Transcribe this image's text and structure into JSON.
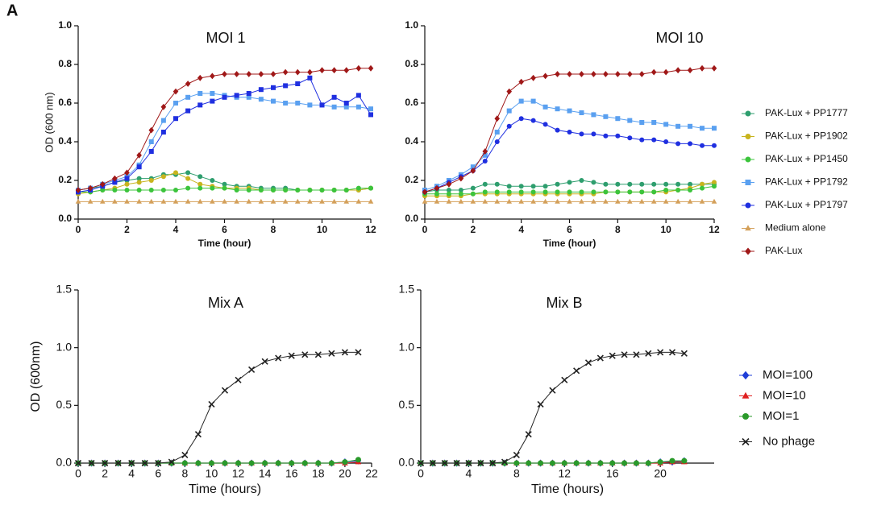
{
  "panel_label": "A",
  "chart_data": [
    {
      "type": "line",
      "title": "MOI 1",
      "xlabel": "Time (hour)",
      "ylabel": "OD (600 nm)",
      "x": [
        0,
        0.5,
        1,
        1.5,
        2,
        2.5,
        3,
        3.5,
        4,
        4.5,
        5,
        5.5,
        6,
        6.5,
        7,
        7.5,
        8,
        8.5,
        9,
        9.5,
        10,
        10.5,
        11,
        11.5,
        12
      ],
      "xlim": [
        0,
        12
      ],
      "xticks": [
        0,
        2,
        4,
        6,
        8,
        10,
        12
      ],
      "ylim": [
        0,
        1
      ],
      "yticks": [
        {
          "value": 0,
          "label": "0.0"
        },
        {
          "value": 0.2,
          "label": "0.2"
        },
        {
          "value": 0.4,
          "label": "0.4"
        },
        {
          "value": 0.6,
          "label": "0.6"
        },
        {
          "value": 0.8,
          "label": "0.8"
        },
        {
          "value": 1,
          "label": "1.0"
        }
      ],
      "series": [
        {
          "name": "PAK-Lux + PP1777",
          "color": "#2e9e6e",
          "marker": "circle",
          "values": [
            0.15,
            0.16,
            0.17,
            0.19,
            0.2,
            0.21,
            0.21,
            0.23,
            0.23,
            0.24,
            0.22,
            0.2,
            0.18,
            0.17,
            0.17,
            0.16,
            0.16,
            0.16,
            0.15,
            0.15,
            0.15,
            0.15,
            0.15,
            0.15,
            0.16
          ]
        },
        {
          "name": "PAK-Lux + PP1902",
          "color": "#c8b41e",
          "marker": "circle",
          "values": [
            0.13,
            0.14,
            0.15,
            0.16,
            0.18,
            0.19,
            0.2,
            0.22,
            0.24,
            0.21,
            0.18,
            0.17,
            0.16,
            0.16,
            0.16,
            0.15,
            0.15,
            0.15,
            0.15,
            0.15,
            0.15,
            0.15,
            0.15,
            0.15,
            0.16
          ]
        },
        {
          "name": "PAK-Lux + PP1450",
          "color": "#3cc43c",
          "marker": "circle",
          "values": [
            0.14,
            0.14,
            0.15,
            0.15,
            0.15,
            0.15,
            0.15,
            0.15,
            0.15,
            0.16,
            0.16,
            0.16,
            0.16,
            0.15,
            0.15,
            0.15,
            0.15,
            0.15,
            0.15,
            0.15,
            0.15,
            0.15,
            0.15,
            0.16,
            0.16
          ]
        },
        {
          "name": "PAK-Lux + PP1792",
          "color": "#5aa0f0",
          "marker": "square",
          "values": [
            0.15,
            0.16,
            0.18,
            0.2,
            0.22,
            0.28,
            0.4,
            0.51,
            0.6,
            0.63,
            0.65,
            0.65,
            0.64,
            0.63,
            0.63,
            0.62,
            0.61,
            0.6,
            0.6,
            0.59,
            0.59,
            0.58,
            0.58,
            0.58,
            0.57
          ]
        },
        {
          "name": "PAK-Lux + PP1797",
          "color": "#1f2fe0",
          "marker": "square",
          "values": [
            0.14,
            0.15,
            0.17,
            0.19,
            0.21,
            0.27,
            0.35,
            0.45,
            0.52,
            0.56,
            0.59,
            0.61,
            0.63,
            0.64,
            0.65,
            0.67,
            0.68,
            0.69,
            0.7,
            0.73,
            0.59,
            0.63,
            0.6,
            0.64,
            0.54
          ]
        },
        {
          "name": "Medium alone",
          "color": "#d4a05a",
          "marker": "triangle",
          "values": [
            0.09,
            0.09,
            0.09,
            0.09,
            0.09,
            0.09,
            0.09,
            0.09,
            0.09,
            0.09,
            0.09,
            0.09,
            0.09,
            0.09,
            0.09,
            0.09,
            0.09,
            0.09,
            0.09,
            0.09,
            0.09,
            0.09,
            0.09,
            0.09,
            0.09
          ]
        },
        {
          "name": "PAK-Lux",
          "color": "#a01818",
          "marker": "diamond",
          "values": [
            0.15,
            0.16,
            0.18,
            0.21,
            0.24,
            0.33,
            0.46,
            0.58,
            0.66,
            0.7,
            0.73,
            0.74,
            0.75,
            0.75,
            0.75,
            0.75,
            0.75,
            0.76,
            0.76,
            0.76,
            0.77,
            0.77,
            0.77,
            0.78,
            0.78
          ]
        }
      ]
    },
    {
      "type": "line",
      "title": "MOI 10",
      "xlabel": "Time (hour)",
      "legend": "right",
      "x": [
        0,
        0.5,
        1,
        1.5,
        2,
        2.5,
        3,
        3.5,
        4,
        4.5,
        5,
        5.5,
        6,
        6.5,
        7,
        7.5,
        8,
        8.5,
        9,
        9.5,
        10,
        10.5,
        11,
        11.5,
        12
      ],
      "xlim": [
        0,
        12
      ],
      "xticks": [
        0,
        2,
        4,
        6,
        8,
        10,
        12
      ],
      "ylim": [
        0,
        1
      ],
      "yticks": [
        {
          "value": 0,
          "label": "0.0"
        },
        {
          "value": 0.2,
          "label": "0.2"
        },
        {
          "value": 0.4,
          "label": "0.4"
        },
        {
          "value": 0.6,
          "label": "0.6"
        },
        {
          "value": 0.8,
          "label": "0.8"
        },
        {
          "value": 1,
          "label": "1.0"
        }
      ],
      "series": [
        {
          "name": "PAK-Lux + PP1777",
          "color": "#2e9e6e",
          "marker": "circle",
          "values": [
            0.14,
            0.15,
            0.15,
            0.15,
            0.16,
            0.18,
            0.18,
            0.17,
            0.17,
            0.17,
            0.17,
            0.18,
            0.19,
            0.2,
            0.19,
            0.18,
            0.18,
            0.18,
            0.18,
            0.18,
            0.18,
            0.18,
            0.18,
            0.18,
            0.18
          ]
        },
        {
          "name": "PAK-Lux + PP1902",
          "color": "#c8b41e",
          "marker": "circle",
          "values": [
            0.12,
            0.12,
            0.12,
            0.12,
            0.13,
            0.13,
            0.13,
            0.13,
            0.13,
            0.13,
            0.13,
            0.13,
            0.13,
            0.13,
            0.13,
            0.14,
            0.14,
            0.14,
            0.14,
            0.14,
            0.14,
            0.15,
            0.16,
            0.18,
            0.19
          ]
        },
        {
          "name": "PAK-Lux + PP1450",
          "color": "#3cc43c",
          "marker": "circle",
          "values": [
            0.13,
            0.13,
            0.13,
            0.13,
            0.13,
            0.14,
            0.14,
            0.14,
            0.14,
            0.14,
            0.14,
            0.14,
            0.14,
            0.14,
            0.14,
            0.14,
            0.14,
            0.14,
            0.14,
            0.14,
            0.15,
            0.15,
            0.15,
            0.16,
            0.17
          ]
        },
        {
          "name": "PAK-Lux + PP1792",
          "color": "#5aa0f0",
          "marker": "square",
          "values": [
            0.15,
            0.17,
            0.2,
            0.23,
            0.27,
            0.33,
            0.45,
            0.56,
            0.61,
            0.61,
            0.58,
            0.57,
            0.56,
            0.55,
            0.54,
            0.53,
            0.52,
            0.51,
            0.5,
            0.5,
            0.49,
            0.48,
            0.48,
            0.47,
            0.47
          ]
        },
        {
          "name": "PAK-Lux + PP1797",
          "color": "#1f2fe0",
          "marker": "circle",
          "values": [
            0.14,
            0.16,
            0.19,
            0.22,
            0.25,
            0.3,
            0.4,
            0.48,
            0.52,
            0.51,
            0.49,
            0.46,
            0.45,
            0.44,
            0.44,
            0.43,
            0.43,
            0.42,
            0.41,
            0.41,
            0.4,
            0.39,
            0.39,
            0.38,
            0.38
          ]
        },
        {
          "name": "Medium alone",
          "color": "#d4a05a",
          "marker": "triangle",
          "values": [
            0.09,
            0.09,
            0.09,
            0.09,
            0.09,
            0.09,
            0.09,
            0.09,
            0.09,
            0.09,
            0.09,
            0.09,
            0.09,
            0.09,
            0.09,
            0.09,
            0.09,
            0.09,
            0.09,
            0.09,
            0.09,
            0.09,
            0.09,
            0.09,
            0.09
          ]
        },
        {
          "name": "PAK-Lux",
          "color": "#a01818",
          "marker": "diamond",
          "values": [
            0.14,
            0.16,
            0.18,
            0.21,
            0.25,
            0.35,
            0.52,
            0.66,
            0.71,
            0.73,
            0.74,
            0.75,
            0.75,
            0.75,
            0.75,
            0.75,
            0.75,
            0.75,
            0.75,
            0.76,
            0.76,
            0.77,
            0.77,
            0.78,
            0.78
          ]
        }
      ]
    },
    {
      "type": "line",
      "title": "Mix A",
      "xlabel": "Time (hours)",
      "ylabel": "OD (600nm)",
      "x": [
        0,
        1,
        2,
        3,
        4,
        5,
        6,
        7,
        8,
        9,
        10,
        11,
        12,
        13,
        14,
        15,
        16,
        17,
        18,
        19,
        20,
        21
      ],
      "xlim": [
        0,
        22
      ],
      "xticks": [
        0,
        2,
        4,
        6,
        8,
        10,
        12,
        14,
        16,
        18,
        20,
        22
      ],
      "ylim": [
        0,
        1.5
      ],
      "yticks": [
        {
          "value": 0,
          "label": "0.0"
        },
        {
          "value": 0.5,
          "label": "0.5"
        },
        {
          "value": 1,
          "label": "1.0"
        },
        {
          "value": 1.5,
          "label": "1.5"
        }
      ],
      "series": [
        {
          "name": "MOI=100",
          "color": "#1f3fd8",
          "marker": "diamond",
          "values": [
            0,
            0,
            0,
            0,
            0,
            0,
            0,
            0,
            0,
            0,
            0,
            0,
            0,
            0,
            0,
            0,
            0,
            0,
            0,
            0,
            0.01,
            0.02
          ]
        },
        {
          "name": "MOI=10",
          "color": "#e02020",
          "marker": "triangle",
          "values": [
            0,
            0,
            0,
            0,
            0,
            0,
            0,
            0,
            0,
            0,
            0,
            0,
            0,
            0,
            0,
            0,
            0,
            0,
            0,
            0,
            0,
            0.01
          ]
        },
        {
          "name": "MOI=1",
          "color": "#2a9a2a",
          "marker": "circle",
          "values": [
            0,
            0,
            0,
            0,
            0,
            0,
            0,
            0,
            0,
            0,
            0,
            0,
            0,
            0,
            0,
            0,
            0,
            0,
            0,
            0,
            0.01,
            0.03
          ]
        },
        {
          "name": "No phage",
          "color": "#222222",
          "marker": "cross",
          "values": [
            0,
            0,
            0,
            0,
            0,
            0,
            0,
            0.01,
            0.07,
            0.25,
            0.51,
            0.63,
            0.72,
            0.81,
            0.88,
            0.91,
            0.93,
            0.94,
            0.94,
            0.95,
            0.96,
            0.96
          ]
        }
      ]
    },
    {
      "type": "line",
      "title": "Mix B",
      "xlabel": "Time (hours)",
      "legend": "right",
      "x": [
        0,
        1,
        2,
        3,
        4,
        5,
        6,
        7,
        8,
        9,
        10,
        11,
        12,
        13,
        14,
        15,
        16,
        17,
        18,
        19,
        20,
        21,
        22
      ],
      "xlim": [
        0,
        24.5
      ],
      "xticks": [
        0,
        4,
        8,
        12,
        16,
        20
      ],
      "ylim": [
        0,
        1.5
      ],
      "yticks": [
        {
          "value": 0,
          "label": "0.0"
        },
        {
          "value": 0.5,
          "label": "0.5"
        },
        {
          "value": 1,
          "label": "1.0"
        },
        {
          "value": 1.5,
          "label": "1.5"
        }
      ],
      "series": [
        {
          "name": "MOI=100",
          "color": "#1f3fd8",
          "marker": "diamond",
          "values": [
            0,
            0,
            0,
            0,
            0,
            0,
            0,
            0,
            0,
            0,
            0,
            0,
            0,
            0,
            0,
            0,
            0,
            0,
            0,
            0,
            0.01,
            0.01,
            0.02
          ]
        },
        {
          "name": "MOI=10",
          "color": "#e02020",
          "marker": "triangle",
          "values": [
            0,
            0,
            0,
            0,
            0,
            0,
            0,
            0,
            0,
            0,
            0,
            0,
            0,
            0,
            0,
            0,
            0,
            0,
            0,
            0,
            0,
            0.01,
            0.01
          ]
        },
        {
          "name": "MOI=1",
          "color": "#2a9a2a",
          "marker": "circle",
          "values": [
            0,
            0,
            0,
            0,
            0,
            0,
            0,
            0,
            0,
            0,
            0,
            0,
            0,
            0,
            0,
            0,
            0,
            0,
            0,
            0,
            0.01,
            0.02,
            0.02
          ]
        },
        {
          "name": "No phage",
          "color": "#222222",
          "marker": "cross",
          "values": [
            0,
            0,
            0,
            0,
            0,
            0,
            0,
            0.01,
            0.07,
            0.25,
            0.51,
            0.63,
            0.72,
            0.8,
            0.87,
            0.91,
            0.93,
            0.94,
            0.94,
            0.95,
            0.96,
            0.96,
            0.95
          ]
        }
      ]
    }
  ]
}
